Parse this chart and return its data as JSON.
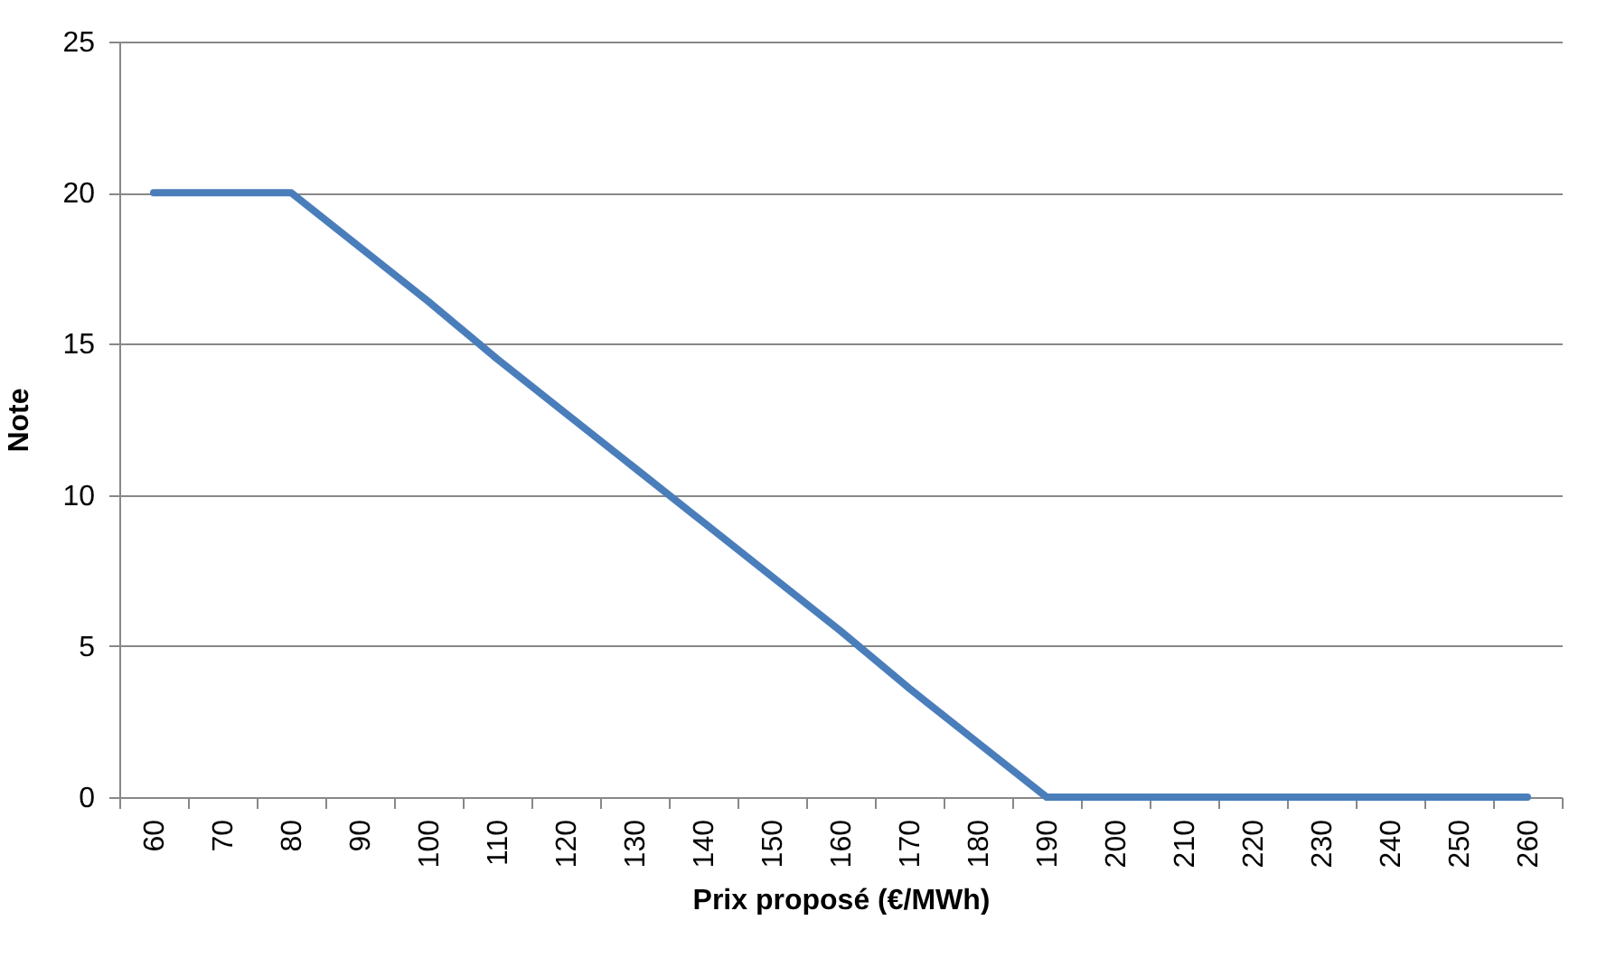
{
  "chart_data": {
    "type": "line",
    "xlabel": "Prix proposé (€/MWh)",
    "ylabel": "Note",
    "categories": [
      "60",
      "70",
      "80",
      "90",
      "100",
      "110",
      "120",
      "130",
      "140",
      "150",
      "160",
      "170",
      "180",
      "190",
      "200",
      "210",
      "220",
      "230",
      "240",
      "250",
      "260"
    ],
    "series": [
      {
        "color": "#4a7ebb",
        "values": [
          20,
          20,
          20,
          18.2,
          16.4,
          14.5,
          12.7,
          10.9,
          9.1,
          7.3,
          5.5,
          3.6,
          1.8,
          0,
          0,
          0,
          0,
          0,
          0,
          0,
          0
        ]
      }
    ],
    "ylim": [
      0,
      25
    ],
    "yticks": [
      0,
      5,
      10,
      15,
      20,
      25
    ],
    "grid": "y",
    "marker": "none",
    "line_style": "solid"
  }
}
